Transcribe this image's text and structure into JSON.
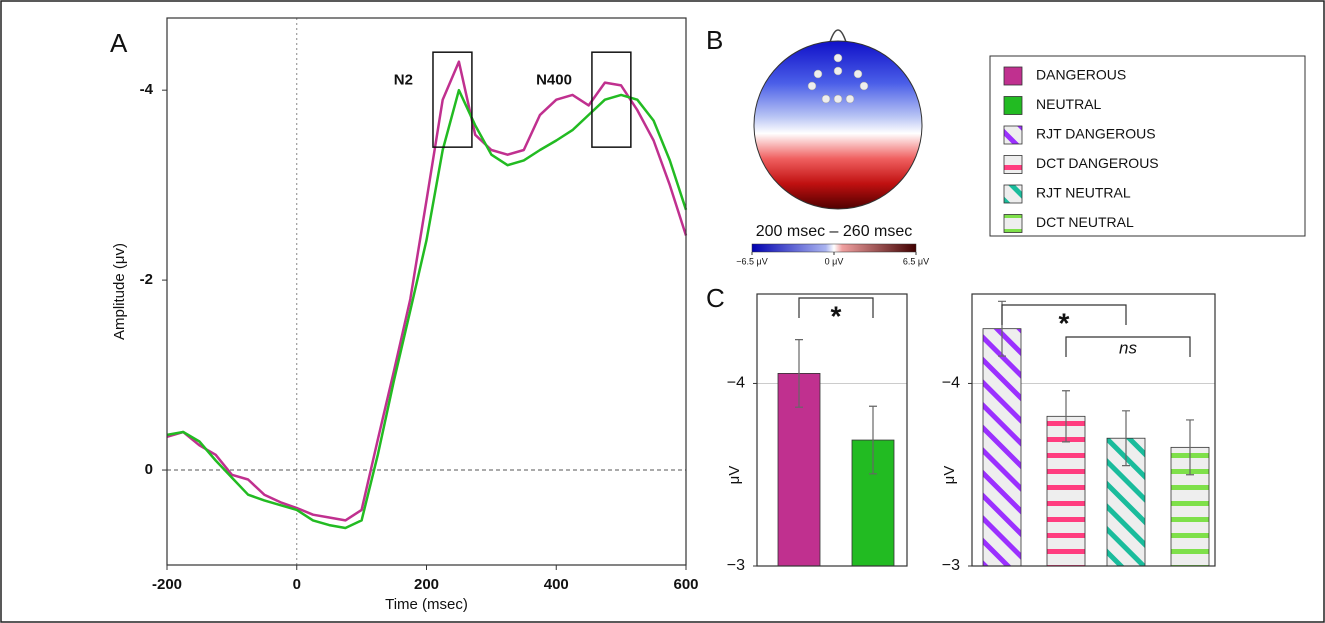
{
  "panel_labels": [
    "A",
    "B",
    "C"
  ],
  "legend": [
    {
      "name": "DANGEROUS",
      "color": "#c0308f",
      "pattern": "solid"
    },
    {
      "name": "NEUTRAL",
      "color": "#22bb22",
      "pattern": "solid"
    },
    {
      "name": "RJT DANGEROUS",
      "color": "#9b30ff",
      "pattern": "diagonal"
    },
    {
      "name": "DCT DANGEROUS",
      "color": "#ff3d7f",
      "pattern": "horizontal"
    },
    {
      "name": "RJT NEUTRAL",
      "color": "#1abc9c",
      "pattern": "diagonal"
    },
    {
      "name": "DCT NEUTRAL",
      "color": "#7ee04a",
      "pattern": "horizontal"
    }
  ],
  "topomap": {
    "window": "200 msec  –  260 msec",
    "range": [
      -6.5,
      6.5
    ],
    "ticks": [
      {
        "value": -6.5,
        "label": "−6.5 μV"
      },
      {
        "value": 0,
        "label": "0 μV"
      },
      {
        "value": 6.5,
        "label": "6.5 μV"
      }
    ]
  },
  "chart_data": [
    {
      "type": "line",
      "xlabel": "Time (msec)",
      "ylabel": "Amplitude (μv)",
      "x": [
        -200,
        -175,
        -150,
        -125,
        -100,
        -75,
        -50,
        -25,
        0,
        25,
        50,
        75,
        100,
        125,
        150,
        175,
        200,
        225,
        250,
        275,
        300,
        325,
        350,
        375,
        400,
        425,
        450,
        475,
        500,
        525,
        550,
        575,
        600
      ],
      "xlim": [
        -200,
        600
      ],
      "xticks": [
        -200,
        0,
        200,
        400,
        600
      ],
      "ylim": [
        1,
        -4.76
      ],
      "yticks": [
        0,
        -2,
        -4
      ],
      "series": [
        {
          "name": "DANGEROUS",
          "color": "#c0308f",
          "values": [
            -0.35,
            -0.4,
            -0.26,
            -0.16,
            0.05,
            0.1,
            0.26,
            0.34,
            0.4,
            0.47,
            0.5,
            0.53,
            0.42,
            -0.32,
            -1.05,
            -1.8,
            -2.84,
            -3.9,
            -4.3,
            -3.53,
            -3.37,
            -3.32,
            -3.37,
            -3.74,
            -3.9,
            -3.95,
            -3.84,
            -4.08,
            -4.05,
            -3.79,
            -3.47,
            -3.0,
            -2.47
          ]
        },
        {
          "name": "NEUTRAL",
          "color": "#22bb22",
          "values": [
            -0.37,
            -0.4,
            -0.3,
            -0.1,
            0.08,
            0.26,
            0.32,
            0.37,
            0.42,
            0.53,
            0.58,
            0.61,
            0.53,
            -0.16,
            -0.95,
            -1.68,
            -2.42,
            -3.37,
            -4.0,
            -3.63,
            -3.32,
            -3.21,
            -3.26,
            -3.37,
            -3.47,
            -3.58,
            -3.74,
            -3.9,
            -3.95,
            -3.9,
            -3.68,
            -3.26,
            -2.74
          ]
        }
      ],
      "annotations": [
        {
          "text": "N2",
          "x": [
            210,
            270
          ],
          "y": [
            -3.4,
            -4.4
          ]
        },
        {
          "text": "N400",
          "x": [
            455,
            515
          ],
          "y": [
            -3.4,
            -4.4
          ]
        }
      ]
    },
    {
      "type": "bar",
      "ylabel": "μV",
      "categories": [
        null,
        null
      ],
      "values": [
        -4.055,
        -3.69
      ],
      "errors": [
        0.185,
        0.185
      ],
      "colors": [
        "#c0308f",
        "#22bb22"
      ],
      "patterns": [
        "solid",
        "solid"
      ],
      "ylim": [
        -3,
        -4.49
      ],
      "yticks": [
        {
          "value": -4,
          "label": "−4"
        },
        {
          "value": -3,
          "label": "−3"
        }
      ],
      "brackets": [
        {
          "from": 0,
          "to": 1,
          "label": "*"
        }
      ]
    },
    {
      "type": "bar",
      "ylabel": "μV",
      "categories": [
        null,
        null,
        null,
        null
      ],
      "values": [
        -4.3,
        -3.82,
        -3.7,
        -3.65
      ],
      "errors": [
        0.15,
        0.14,
        0.15,
        0.15
      ],
      "colors": [
        "#9b30ff",
        "#ff3d7f",
        "#1abc9c",
        "#7ee04a"
      ],
      "patterns": [
        "diagonal",
        "horizontal",
        "diagonal",
        "horizontal"
      ],
      "ylim": [
        -3,
        -4.49
      ],
      "yticks": [
        {
          "value": -4,
          "label": "−4"
        },
        {
          "value": -3,
          "label": "−3"
        }
      ],
      "brackets": [
        {
          "from": 0,
          "to": 2,
          "label": "*"
        },
        {
          "from": 1,
          "to": 3,
          "label": "ns"
        }
      ]
    }
  ]
}
